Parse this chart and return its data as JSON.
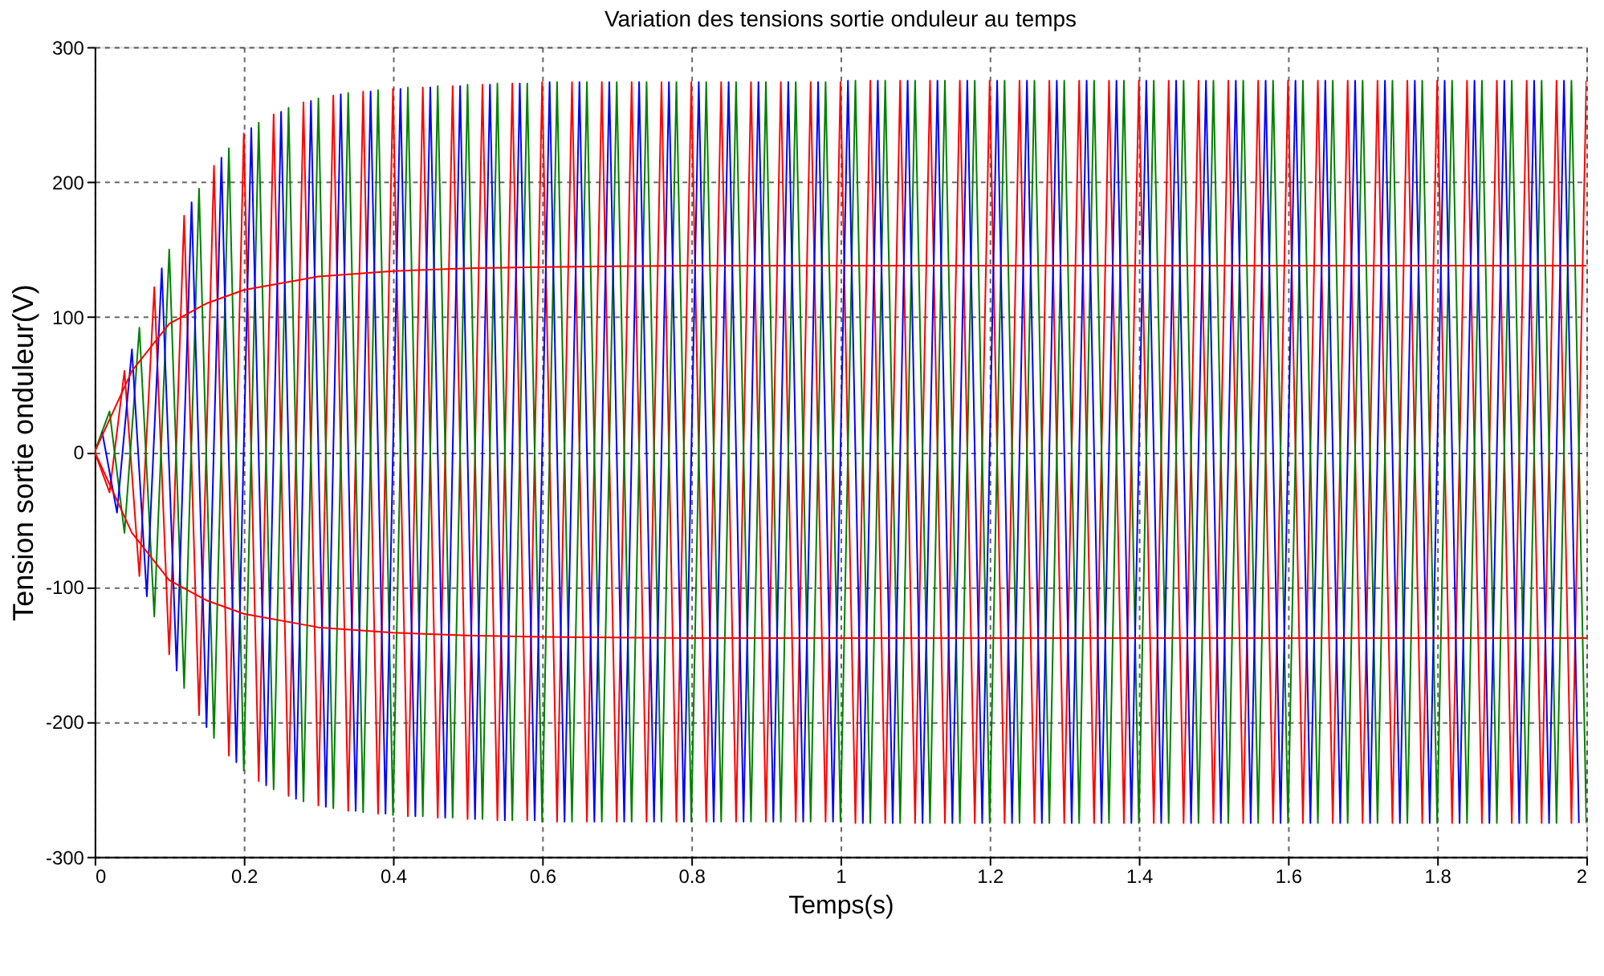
{
  "chart_data": {
    "type": "line",
    "title": "Variation des tensions sortie onduleur au temps",
    "xlabel": "Temps(s)",
    "ylabel": "Tension sortie onduleur(V)",
    "xlim": [
      0,
      2
    ],
    "xticks": [
      0,
      0.2,
      0.4,
      0.6,
      0.8,
      1,
      1.2,
      1.4,
      1.6,
      1.8,
      2
    ],
    "ylim": [
      -300,
      300
    ],
    "yticks": [
      -300,
      -200,
      -100,
      0,
      100,
      200,
      300
    ],
    "grid": true,
    "marker": "none",
    "line_style": "solid",
    "x": [
      0,
      0.02,
      0.04,
      0.06,
      0.08,
      0.1,
      0.12,
      0.14,
      0.16,
      0.18,
      0.2,
      0.22,
      0.24,
      0.26,
      0.28,
      0.3,
      0.32,
      0.34,
      0.36,
      0.38,
      0.4,
      0.42,
      0.44,
      0.46,
      0.48,
      0.5,
      0.52,
      0.54,
      0.56,
      0.58,
      0.6,
      0.62,
      0.64,
      0.66,
      0.68,
      0.7,
      0.72,
      0.74,
      0.76,
      0.78,
      0.8,
      0.82,
      0.84,
      0.86,
      0.88,
      0.9,
      0.92,
      0.94,
      0.96,
      0.98,
      1,
      1.02,
      1.04,
      1.06,
      1.08,
      1.1,
      1.12,
      1.14,
      1.16,
      1.18,
      1.2,
      1.22,
      1.24,
      1.26,
      1.28,
      1.3,
      1.32,
      1.34,
      1.36,
      1.38,
      1.4,
      1.42,
      1.44,
      1.46,
      1.48,
      1.5,
      1.52,
      1.54,
      1.56,
      1.58,
      1.6,
      1.62,
      1.64,
      1.66,
      1.68,
      1.7,
      1.72,
      1.74,
      1.76,
      1.78,
      1.8,
      1.82,
      1.84,
      1.86,
      1.88,
      1.9,
      1.92,
      1.94,
      1.96,
      1.98,
      2
    ],
    "series": [
      {
        "color": "#ff0000",
        "values": [
          0,
          -30,
          60,
          -92,
          122,
          -150,
          175,
          -195,
          212,
          -225,
          236,
          -244,
          250,
          -255,
          259,
          -262,
          264,
          -266,
          267,
          -268,
          269,
          -270,
          270,
          -271,
          271,
          -272,
          272,
          -273,
          273,
          -273,
          274,
          -274,
          274,
          -274,
          274,
          -274,
          274,
          -274,
          274,
          -274,
          274,
          -274,
          274,
          -274,
          274,
          -274,
          274,
          -274,
          274,
          -274,
          274,
          -275,
          275,
          -275,
          275,
          -275,
          275,
          -275,
          275,
          -275,
          275,
          -275,
          275,
          -275,
          275,
          -275,
          275,
          -275,
          275,
          -275,
          275,
          -275,
          275,
          -275,
          275,
          -275,
          275,
          -275,
          275,
          -275,
          275,
          -275,
          275,
          -275,
          275,
          -275,
          275,
          -275,
          275,
          -275,
          275,
          -275,
          275,
          -275,
          275,
          -275,
          275,
          -275,
          275,
          -275,
          275
        ]
      },
      {
        "color": "#008000",
        "values": [
          0,
          30,
          -60,
          92,
          -122,
          150,
          -175,
          195,
          -212,
          225,
          -236,
          244,
          -250,
          255,
          -259,
          262,
          -264,
          266,
          -267,
          268,
          -269,
          270,
          -270,
          271,
          -271,
          272,
          -272,
          273,
          -273,
          273,
          -274,
          274,
          -274,
          274,
          -274,
          274,
          -274,
          274,
          -274,
          274,
          -274,
          274,
          -274,
          274,
          -274,
          274,
          -274,
          274,
          -274,
          274,
          -274,
          275,
          -275,
          275,
          -275,
          275,
          -275,
          275,
          -275,
          275,
          -275,
          275,
          -275,
          275,
          -275,
          275,
          -275,
          275,
          -275,
          275,
          -275,
          275,
          -275,
          275,
          -275,
          275,
          -275,
          275,
          -275,
          275,
          -275,
          275,
          -275,
          275,
          -275,
          275,
          -275,
          275,
          -275,
          275,
          -275,
          275,
          -275,
          275,
          -275,
          275,
          -275,
          275,
          -275,
          275,
          -275
        ]
      },
      {
        "color": "#0000ff",
        "x": [
          0.01,
          0.03,
          0.05,
          0.07,
          0.09,
          0.11,
          0.13,
          0.15,
          0.17,
          0.19,
          0.21,
          0.23,
          0.25,
          0.27,
          0.29,
          0.31,
          0.33,
          0.35,
          0.37,
          0.39,
          0.41,
          0.43,
          0.45,
          0.47,
          0.49,
          0.51,
          0.53,
          0.55,
          0.57,
          0.59,
          0.61,
          0.63,
          0.65,
          0.67,
          0.69,
          0.71,
          0.73,
          0.75,
          0.77,
          0.79,
          0.81,
          0.83,
          0.85,
          0.87,
          0.89,
          0.91,
          0.93,
          0.95,
          0.97,
          0.99,
          1.01,
          1.03,
          1.05,
          1.07,
          1.09,
          1.11,
          1.13,
          1.15,
          1.17,
          1.19,
          1.21,
          1.23,
          1.25,
          1.27,
          1.29,
          1.31,
          1.33,
          1.35,
          1.37,
          1.39,
          1.41,
          1.43,
          1.45,
          1.47,
          1.49,
          1.51,
          1.53,
          1.55,
          1.57,
          1.59,
          1.61,
          1.63,
          1.65,
          1.67,
          1.69,
          1.71,
          1.73,
          1.75,
          1.77,
          1.79,
          1.81,
          1.83,
          1.85,
          1.87,
          1.89,
          1.91,
          1.93,
          1.95,
          1.97,
          1.99
        ],
        "values": [
          15,
          -45,
          76,
          -107,
          136,
          -162,
          185,
          -204,
          218,
          -230,
          240,
          -247,
          252,
          -257,
          260,
          -263,
          265,
          -266,
          267,
          -268,
          269,
          -270,
          270,
          -271,
          271,
          -272,
          272,
          -273,
          273,
          -273,
          274,
          -274,
          274,
          -274,
          274,
          -274,
          274,
          -274,
          274,
          -274,
          274,
          -274,
          274,
          -274,
          274,
          -274,
          274,
          -274,
          274,
          -274,
          275,
          -275,
          275,
          -275,
          275,
          -275,
          275,
          -275,
          275,
          -275,
          275,
          -275,
          275,
          -275,
          275,
          -275,
          275,
          -275,
          275,
          -275,
          275,
          -275,
          275,
          -275,
          275,
          -275,
          275,
          -275,
          275,
          -275,
          275,
          -275,
          275,
          -275,
          275,
          -275,
          275,
          -275,
          275,
          -275,
          275,
          -275,
          275,
          -275,
          275,
          -275,
          275,
          -275,
          275,
          -275
        ]
      },
      {
        "color": "#ff0000",
        "x": [
          0,
          0.05,
          0.1,
          0.15,
          0.2,
          0.3,
          0.4,
          0.5,
          0.6,
          0.8,
          1,
          1.5,
          2
        ],
        "values": [
          0,
          60,
          95,
          110,
          120,
          130,
          134,
          136,
          137,
          138,
          138,
          138,
          138
        ]
      },
      {
        "color": "#ff0000",
        "x": [
          0,
          0.05,
          0.1,
          0.15,
          0.2,
          0.3,
          0.4,
          0.5,
          0.6,
          0.8,
          1,
          1.5,
          2
        ],
        "values": [
          0,
          -60,
          -95,
          -110,
          -120,
          -130,
          -134,
          -136,
          -137,
          -138,
          -138,
          -138,
          -138
        ]
      }
    ]
  }
}
